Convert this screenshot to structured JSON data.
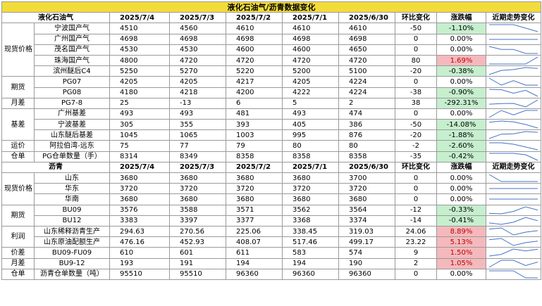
{
  "title": "液化石油气/沥青数据变化",
  "sections": [
    {
      "header": [
        "液化石油气",
        "2025/7/4",
        "2025/7/3",
        "2025/7/2",
        "2025/7/1",
        "2025/6/30",
        "环比变化",
        "涨跌幅",
        "近期走势变化"
      ],
      "groups": [
        {
          "category": "现货价格",
          "rows": [
            {
              "name": "宁波国产气",
              "values": [
                "4510",
                "4560",
                "4610",
                "4610",
                "4610"
              ],
              "chg": "-50",
              "pct": "-1.10%",
              "dir": "neg"
            },
            {
              "name": "广州国产气",
              "values": [
                "4698",
                "4698",
                "4698",
                "4698",
                "4698"
              ],
              "chg": "0",
              "pct": "0.00%",
              "dir": "none"
            },
            {
              "name": "茂名国产气",
              "values": [
                "4530",
                "4530",
                "4600",
                "4600",
                "4650"
              ],
              "chg": "0",
              "pct": "0.00%",
              "dir": "none"
            },
            {
              "name": "珠海国产气",
              "values": [
                "4800",
                "4720",
                "4720",
                "4720",
                "4720"
              ],
              "chg": "80",
              "pct": "1.69%",
              "dir": "pos"
            },
            {
              "name": "滨州醚后C4",
              "values": [
                "5250",
                "5270",
                "5220",
                "5200",
                "5100"
              ],
              "chg": "-20",
              "pct": "-0.38%",
              "dir": "neg"
            }
          ]
        },
        {
          "category": "期货",
          "rows": [
            {
              "name": "PG07",
              "values": [
                "4205",
                "4205",
                "4217",
                "4205",
                "4224"
              ],
              "chg": "0",
              "pct": "0.00%",
              "dir": "none"
            },
            {
              "name": "PG08",
              "values": [
                "4180",
                "4218",
                "4200",
                "4222",
                "4224"
              ],
              "chg": "-38",
              "pct": "-0.90%",
              "dir": "neg"
            }
          ]
        },
        {
          "category": "月差",
          "rows": [
            {
              "name": "PG7-8",
              "values": [
                "25",
                "-13",
                "6",
                "5",
                "2"
              ],
              "chg": "38",
              "pct": "-292.31%",
              "dir": "neg"
            }
          ]
        },
        {
          "category": "基差",
          "rows": [
            {
              "name": "广州基差",
              "values": [
                "493",
                "493",
                "481",
                "493",
                "474"
              ],
              "chg": "0",
              "pct": "0.00%",
              "dir": "none"
            },
            {
              "name": "宁波基差",
              "values": [
                "305",
                "355",
                "393",
                "405",
                "386"
              ],
              "chg": "-50",
              "pct": "-14.08%",
              "dir": "neg"
            },
            {
              "name": "山东醚后基差",
              "values": [
                "1045",
                "1065",
                "1003",
                "995",
                "876"
              ],
              "chg": "-20",
              "pct": "-1.88%",
              "dir": "neg"
            }
          ]
        },
        {
          "category": "运价",
          "rows": [
            {
              "name": "阿拉伯湾-远东",
              "values": [
                "75",
                "77",
                "79",
                "80",
                "80"
              ],
              "chg": "-2",
              "pct": "-2.60%",
              "dir": "neg"
            }
          ]
        },
        {
          "category": "仓单",
          "rows": [
            {
              "name": "PG仓单数量（手）",
              "values": [
                "8314",
                "8349",
                "8358",
                "8358",
                "8358"
              ],
              "chg": "-35",
              "pct": "-0.42%",
              "dir": "neg"
            }
          ]
        }
      ]
    },
    {
      "header": [
        "沥青",
        "2025/7/4",
        "2025/7/3",
        "2025/7/2",
        "2025/7/1",
        "2025/6/30",
        "环比变化",
        "涨跌幅",
        "近期走势变化"
      ],
      "groups": [
        {
          "category": "现货价格",
          "rows": [
            {
              "name": "山东",
              "values": [
                "3680",
                "3680",
                "3680",
                "3680",
                "3700"
              ],
              "chg": "0",
              "pct": "0.00%",
              "dir": "none"
            },
            {
              "name": "华东",
              "values": [
                "3720",
                "3720",
                "3720",
                "3720",
                "3720"
              ],
              "chg": "0",
              "pct": "0.00%",
              "dir": "none"
            },
            {
              "name": "华南",
              "values": [
                "3680",
                "3680",
                "3680",
                "3680",
                "3680"
              ],
              "chg": "0",
              "pct": "0.00%",
              "dir": "none"
            }
          ]
        },
        {
          "category": "期货",
          "rows": [
            {
              "name": "BU09",
              "values": [
                "3576",
                "3588",
                "3571",
                "3562",
                "3564"
              ],
              "chg": "-12",
              "pct": "-0.33%",
              "dir": "neg"
            },
            {
              "name": "BU12",
              "values": [
                "3383",
                "3397",
                "3377",
                "3368",
                "3374"
              ],
              "chg": "-14",
              "pct": "-0.41%",
              "dir": "neg"
            }
          ]
        },
        {
          "category": "利润",
          "rows": [
            {
              "name": "山东稀释沥青生产",
              "values": [
                "294.63",
                "270.56",
                "225.06",
                "338.45",
                "319.03"
              ],
              "chg": "24.06",
              "pct": "8.89%",
              "dir": "pos"
            },
            {
              "name": "山东原油配额生产",
              "values": [
                "476.16",
                "452.93",
                "408.07",
                "517.46",
                "499.17"
              ],
              "chg": "23.22",
              "pct": "5.13%",
              "dir": "pos"
            }
          ]
        },
        {
          "category": "价差",
          "rows": [
            {
              "name": "BU09-FU09",
              "values": [
                "610",
                "601",
                "611",
                "583",
                "574"
              ],
              "chg": "9",
              "pct": "1.50%",
              "dir": "pos"
            }
          ]
        },
        {
          "category": "月差",
          "rows": [
            {
              "name": "BU9-12",
              "values": [
                "193",
                "191",
                "194",
                "194",
                "190"
              ],
              "chg": "2",
              "pct": "1.05%",
              "dir": "pos"
            }
          ]
        },
        {
          "category": "仓单",
          "rows": [
            {
              "name": "沥青仓单数量（吨）",
              "values": [
                "95510",
                "95510",
                "96360",
                "96360",
                "96360"
              ],
              "chg": "0",
              "pct": "0.00%",
              "dir": "none"
            }
          ]
        }
      ]
    }
  ],
  "colors": {
    "title_bg": "#f2dc3c",
    "up_bg": "#f4b9bd",
    "up_text": "#c00000",
    "down_bg": "#c6efce",
    "sparkline": "#4472c4"
  }
}
